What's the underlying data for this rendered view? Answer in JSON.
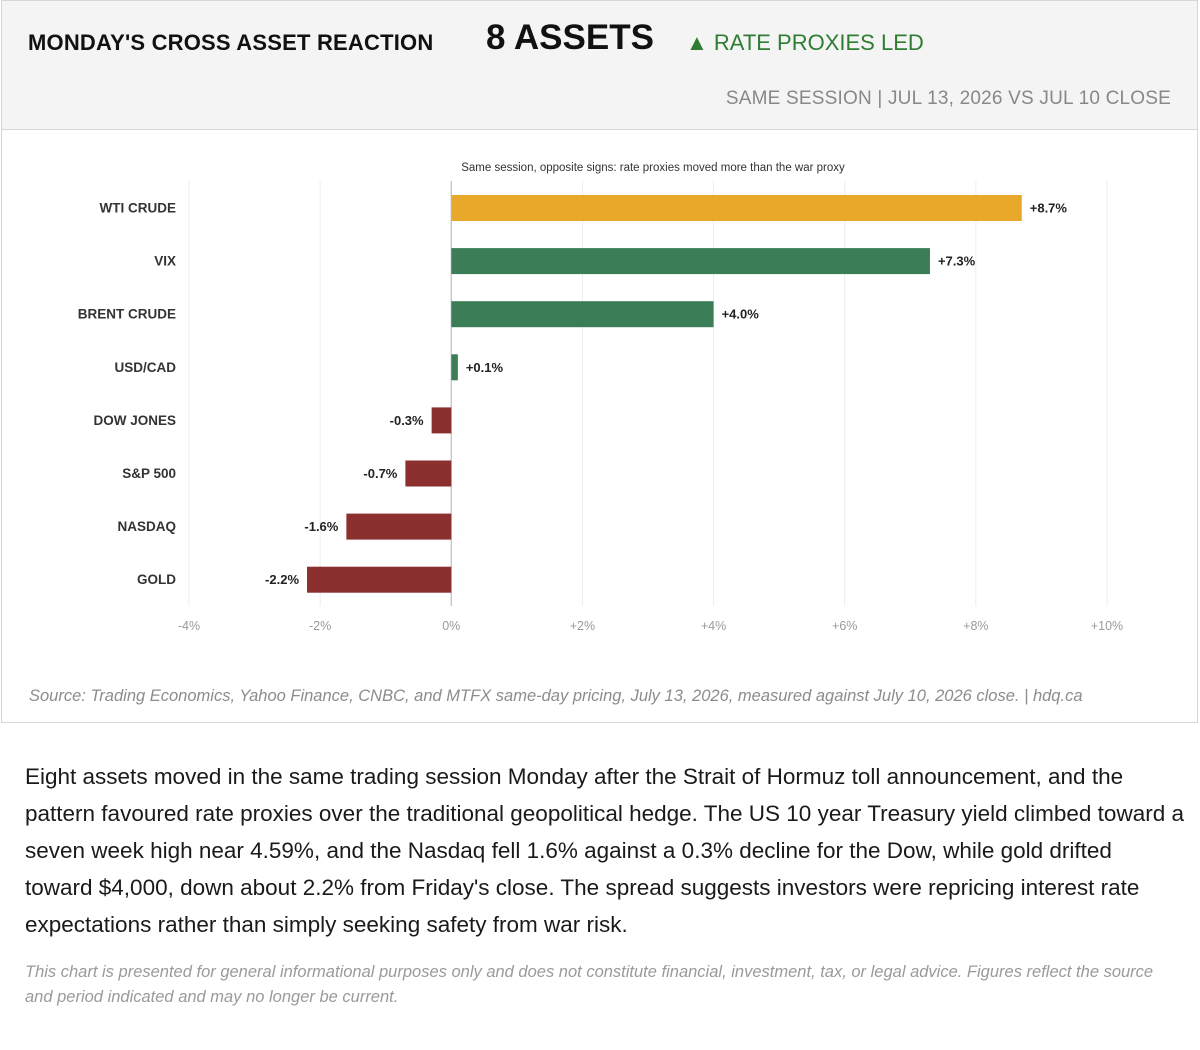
{
  "header": {
    "title": "MONDAY'S CROSS ASSET REACTION",
    "count": "8 ASSETS",
    "status": "▲ RATE PROXIES LED",
    "subtitle": "SAME SESSION  |  JUL 13, 2026 VS JUL 10 CLOSE"
  },
  "colors": {
    "highlight": "#E8A82A",
    "positive": "#3A7D57",
    "negative": "#8B2F2F",
    "status_green": "#2E7D32"
  },
  "chart_data": {
    "type": "bar",
    "orientation": "horizontal",
    "title": "Same session, opposite signs: rate proxies moved more than the war proxy",
    "categories": [
      "WTI CRUDE",
      "VIX",
      "BRENT CRUDE",
      "USD/CAD",
      "DOW JONES",
      "S&P 500",
      "NASDAQ",
      "GOLD"
    ],
    "values": [
      8.7,
      7.3,
      4.0,
      0.1,
      -0.3,
      -0.7,
      -1.6,
      -2.2
    ],
    "value_labels": [
      "+8.7%",
      "+7.3%",
      "+4.0%",
      "+0.1%",
      "-0.3%",
      "-0.7%",
      "-1.6%",
      "-2.2%"
    ],
    "highlight_category": "WTI CRUDE",
    "xlim": [
      -4,
      10
    ],
    "xticks": [
      -4,
      -2,
      0,
      2,
      4,
      6,
      8,
      10
    ],
    "xtick_labels": [
      "-4%",
      "-2%",
      "0%",
      "+2%",
      "+4%",
      "+6%",
      "+8%",
      "+10%"
    ],
    "xlabel": "",
    "ylabel": "",
    "grid": true,
    "legend": false
  },
  "source_note": "Source: Trading Economics, Yahoo Finance, CNBC, and MTFX same-day pricing, July 13, 2026, measured against July 10, 2026 close.  |  hdq.ca",
  "body_text": "Eight assets moved in the same trading session Monday after the Strait of Hormuz toll announcement, and the pattern favoured rate proxies over the traditional geopolitical hedge. The US 10 year Treasury yield climbed toward a seven week high near 4.59%, and the Nasdaq fell 1.6% against a 0.3% decline for the Dow, while gold drifted toward $4,000, down about 2.2% from Friday's close. The spread suggests investors were repricing interest rate expectations rather than simply seeking safety from war risk.",
  "disclaimer": "This chart is presented for general informational purposes only and does not constitute financial, investment, tax, or legal advice. Figures reflect the source and period indicated and may no longer be current."
}
